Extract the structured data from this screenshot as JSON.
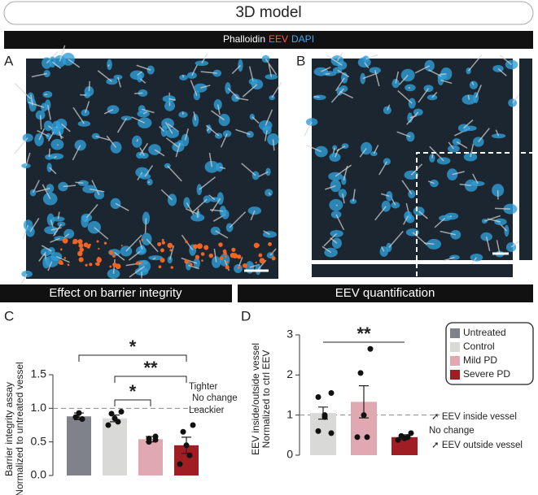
{
  "header": {
    "title": "3D model"
  },
  "stains": [
    {
      "text": "Phalloidin",
      "color": "#ffffff"
    },
    {
      "text": "EEV",
      "color": "#f26522"
    },
    {
      "text": "DAPI",
      "color": "#3fa9f5"
    }
  ],
  "panels": {
    "a": "A",
    "b": "B",
    "c": "C",
    "d": "D"
  },
  "sections": {
    "left": "Effect on barrier integrity",
    "right": "EEV quantification"
  },
  "chart_data": [
    {
      "type": "bar",
      "ylabel": [
        "Barrier integrity assay",
        "Normalized to untreated vessel"
      ],
      "categories": [
        "Untreated",
        "Control",
        "Mild PD",
        "Severe PD"
      ],
      "values": [
        0.88,
        0.85,
        0.54,
        0.45
      ],
      "errors": [
        0.05,
        0.05,
        0.04,
        0.12
      ],
      "points": [
        [
          0.84,
          0.93,
          0.87
        ],
        [
          0.95,
          0.92,
          0.85,
          0.8,
          0.75
        ],
        [
          0.58,
          0.55,
          0.5,
          0.53
        ],
        [
          0.75,
          0.65,
          0.45,
          0.3,
          0.17
        ]
      ],
      "colors": [
        "#7f8288",
        "#d9dad8",
        "#e0a8b0",
        "#a01d24"
      ],
      "ylim": [
        0,
        1.5
      ],
      "yticks": [
        {
          "value": 0,
          "label": "0.0"
        },
        {
          "value": 0.5,
          "label": "0.5"
        },
        {
          "value": 1,
          "label": "1.0"
        },
        {
          "value": 1.5,
          "label": "1.5"
        }
      ],
      "reference_line": 1,
      "annotations": [
        "Tighter",
        "No change",
        "Leackier"
      ],
      "significance": [
        {
          "label": "*",
          "between": [
            "Untreated",
            "Severe PD"
          ]
        },
        {
          "label": "**",
          "between": [
            "Control",
            "Severe PD"
          ]
        },
        {
          "label": "*",
          "between": [
            "Control",
            "Mild PD"
          ]
        }
      ]
    },
    {
      "type": "bar",
      "ylabel": [
        "EEV inside/outside vessel",
        "Normalized to ctrl EEV"
      ],
      "categories": [
        "Control",
        "Mild PD",
        "Severe PD"
      ],
      "values": [
        1.05,
        1.33,
        0.45
      ],
      "errors": [
        0.15,
        0.4,
        0.06
      ],
      "points": [
        [
          1.55,
          1.45,
          1.0,
          0.95,
          0.6,
          0.55
        ],
        [
          2.65,
          2.05,
          1.0,
          0.45,
          0.45
        ],
        [
          0.55,
          0.48,
          0.42,
          0.45,
          0.38
        ]
      ],
      "colors": [
        "#d9dad8",
        "#e0a8b0",
        "#a01d24"
      ],
      "ylim": [
        0,
        3
      ],
      "yticks": [
        0,
        1,
        2,
        3
      ],
      "reference_line": 1,
      "annotations": [
        "➚ EEV inside vessel",
        "No change",
        "➚ EEV outside vessel"
      ],
      "significance": [
        {
          "label": "**",
          "between": [
            "Control",
            "Severe PD"
          ]
        }
      ],
      "legend": [
        {
          "name": "Untreated",
          "color": "#7f8288"
        },
        {
          "name": "Control",
          "color": "#d9dad8"
        },
        {
          "name": "Mild PD",
          "color": "#e0a8b0"
        },
        {
          "name": "Severe PD",
          "color": "#a01d24"
        }
      ]
    }
  ]
}
